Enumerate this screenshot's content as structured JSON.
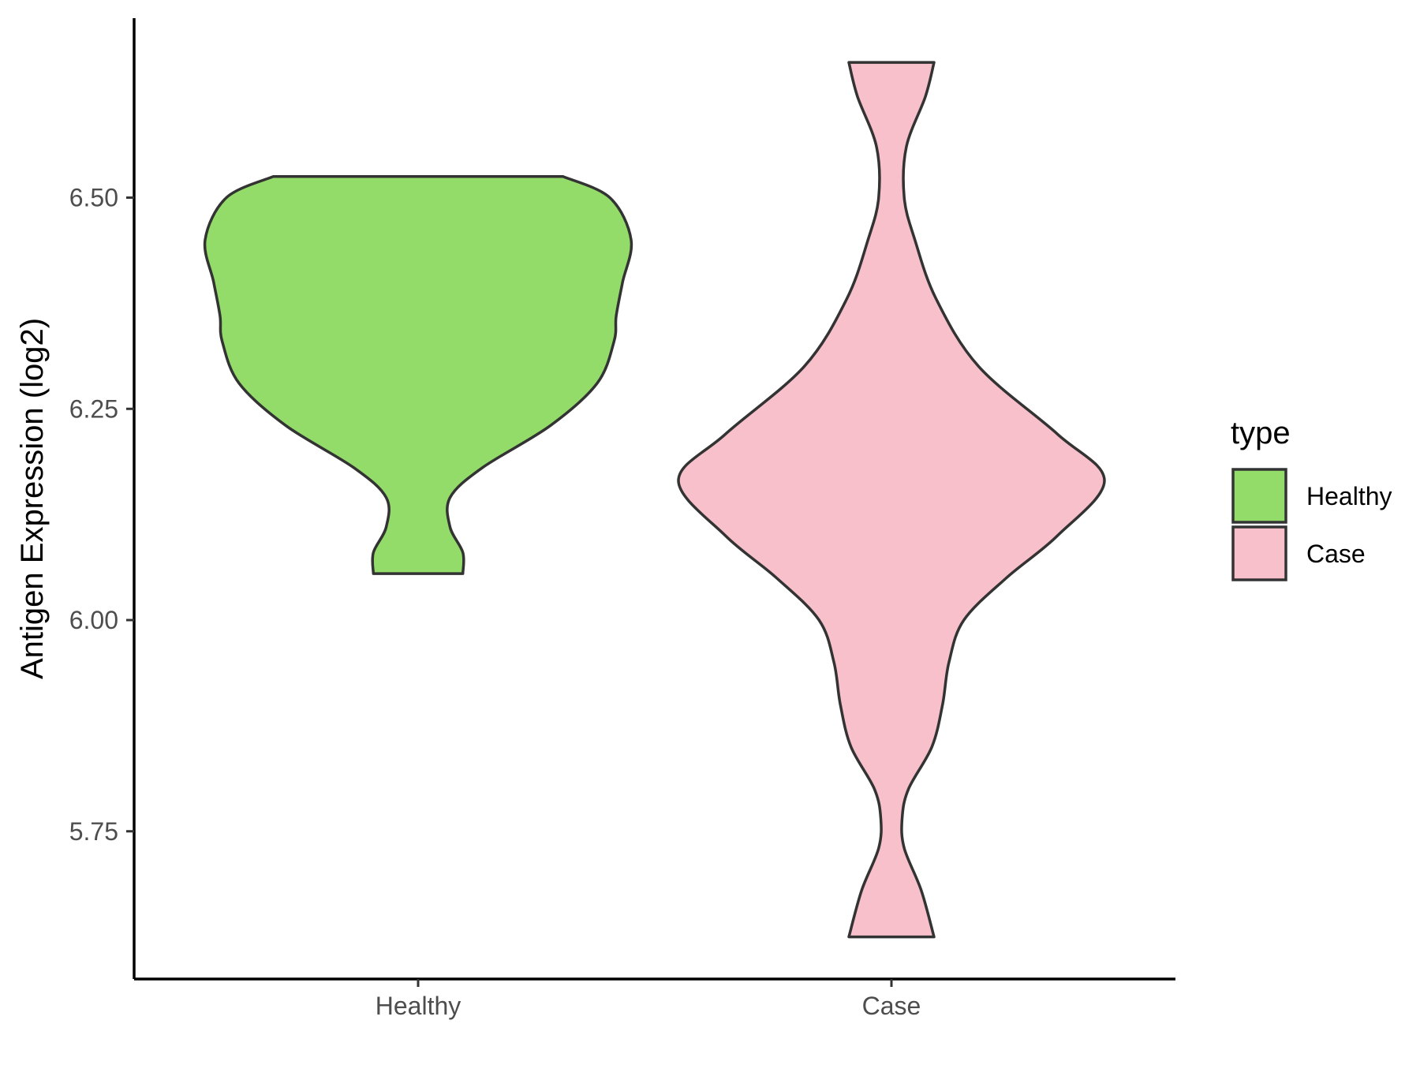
{
  "chart_data": {
    "type": "violin",
    "title": "",
    "xlabel": "",
    "ylabel": "Antigen Expression (log2)",
    "ylim": [
      5.6,
      6.75
    ],
    "yticks": [
      "5.75",
      "6.00",
      "6.25",
      "6.50"
    ],
    "yticks_values": [
      5.75,
      6.0,
      6.25,
      6.5
    ],
    "categories": [
      "Healthy",
      "Case"
    ],
    "grid": false,
    "legend": {
      "title": "type",
      "placement": "right",
      "items": [
        {
          "label": "Healthy",
          "color": "#93dc6a"
        },
        {
          "label": "Case",
          "color": "#f7c0cb"
        }
      ]
    },
    "series": [
      {
        "name": "Healthy",
        "color": "#93dc6a",
        "min": 6.055,
        "max": 6.525,
        "density_profile": [
          [
            6.055,
            0.21
          ],
          [
            6.08,
            0.21
          ],
          [
            6.11,
            0.15
          ],
          [
            6.145,
            0.15
          ],
          [
            6.18,
            0.3
          ],
          [
            6.23,
            0.62
          ],
          [
            6.28,
            0.84
          ],
          [
            6.33,
            0.92
          ],
          [
            6.36,
            0.93
          ],
          [
            6.4,
            0.96
          ],
          [
            6.45,
            1.0
          ],
          [
            6.5,
            0.9
          ],
          [
            6.525,
            0.68
          ]
        ]
      },
      {
        "name": "Case",
        "color": "#f7c0cb",
        "min": 5.625,
        "max": 6.66,
        "density_profile": [
          [
            5.625,
            0.2
          ],
          [
            5.68,
            0.14
          ],
          [
            5.73,
            0.06
          ],
          [
            5.765,
            0.05
          ],
          [
            5.8,
            0.08
          ],
          [
            5.85,
            0.19
          ],
          [
            5.9,
            0.24
          ],
          [
            5.95,
            0.27
          ],
          [
            6.0,
            0.34
          ],
          [
            6.05,
            0.54
          ],
          [
            6.1,
            0.78
          ],
          [
            6.165,
            1.0
          ],
          [
            6.22,
            0.78
          ],
          [
            6.3,
            0.41
          ],
          [
            6.38,
            0.21
          ],
          [
            6.45,
            0.11
          ],
          [
            6.5,
            0.06
          ],
          [
            6.56,
            0.07
          ],
          [
            6.62,
            0.16
          ],
          [
            6.66,
            0.2
          ]
        ]
      }
    ]
  }
}
